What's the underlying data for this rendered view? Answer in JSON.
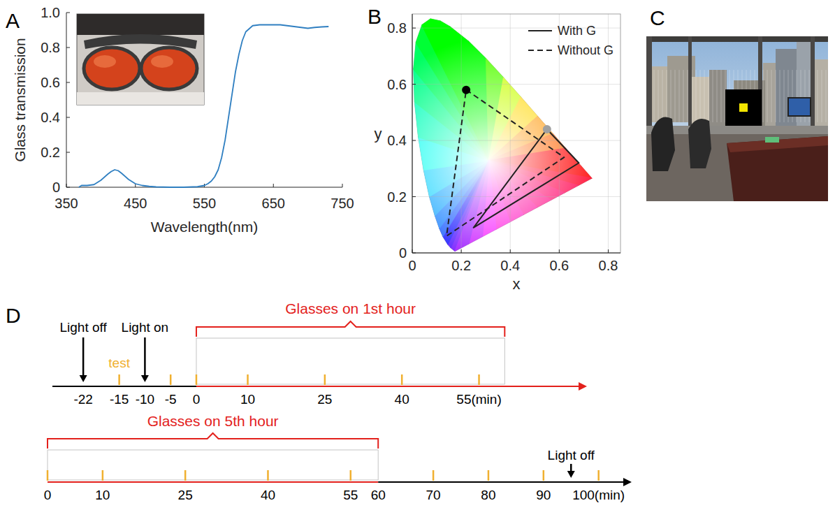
{
  "panel_labels": [
    "A",
    "B",
    "C",
    "D"
  ],
  "chart_data": [
    {
      "type": "line",
      "xlabel": "Wavelength(nm)",
      "ylabel": "Glass transmission",
      "x": [
        368,
        372,
        380,
        390,
        400,
        410,
        415,
        420,
        425,
        430,
        440,
        450,
        460,
        470,
        480,
        500,
        520,
        540,
        550,
        555,
        560,
        565,
        570,
        575,
        580,
        585,
        590,
        595,
        600,
        605,
        610,
        620,
        630,
        640,
        650,
        660,
        670,
        680,
        690,
        700,
        710,
        720,
        730
      ],
      "values": [
        0,
        0.01,
        0.01,
        0.015,
        0.04,
        0.075,
        0.09,
        0.1,
        0.095,
        0.08,
        0.045,
        0.02,
        0.01,
        0.005,
        0.002,
        0,
        0,
        0.003,
        0.01,
        0.02,
        0.035,
        0.06,
        0.1,
        0.17,
        0.27,
        0.4,
        0.53,
        0.66,
        0.76,
        0.84,
        0.89,
        0.925,
        0.93,
        0.93,
        0.93,
        0.93,
        0.925,
        0.92,
        0.915,
        0.91,
        0.915,
        0.918,
        0.92
      ],
      "color": "#2f7fc1",
      "xlim": [
        350,
        750
      ],
      "ylim": [
        0,
        1
      ],
      "xticks": [
        350,
        450,
        550,
        650,
        750
      ],
      "yticks": [
        0,
        0.2,
        0.4,
        0.6,
        0.8,
        {
          "value": 1,
          "label": "1.0"
        }
      ]
    },
    {
      "type": "line",
      "xlabel": "x",
      "ylabel": "y",
      "xlim": [
        0,
        0.85
      ],
      "ylim": [
        0,
        0.85
      ],
      "xticks": [
        0,
        0.2,
        0.4,
        0.6,
        0.8
      ],
      "yticks": [
        0,
        0.2,
        0.4,
        0.6,
        0.8
      ],
      "grid": true,
      "legend": "upper right",
      "spectral_locus": {
        "x": [
          0.1741,
          0.1566,
          0.144,
          0.1241,
          0.1096,
          0.0913,
          0.0687,
          0.0454,
          0.0235,
          0.0082,
          0.0039,
          0.0139,
          0.0389,
          0.0743,
          0.1142,
          0.1547,
          0.2296,
          0.3016,
          0.3731,
          0.4441,
          0.5125,
          0.5752,
          0.627,
          0.6915,
          0.7347
        ],
        "y": [
          0.005,
          0.0177,
          0.0297,
          0.0578,
          0.0868,
          0.1327,
          0.2007,
          0.295,
          0.4127,
          0.5384,
          0.6548,
          0.7502,
          0.812,
          0.8338,
          0.8262,
          0.8059,
          0.7543,
          0.6923,
          0.6245,
          0.5547,
          0.4866,
          0.4242,
          0.3725,
          0.3083,
          0.2653
        ]
      },
      "series": [
        {
          "name": "With G",
          "x": [
            0.55,
            0.68,
            0.25
          ],
          "values": [
            0.44,
            0.32,
            0.09
          ],
          "line_style": "solid",
          "marker": "circle",
          "color": "#a0a0a0"
        },
        {
          "name": "Without G",
          "x": [
            0.22,
            0.62,
            0.14
          ],
          "values": [
            0.58,
            0.34,
            0.06
          ],
          "line_style": "dashed",
          "marker": "circle",
          "color": "#000000"
        }
      ]
    }
  ],
  "timelines": [
    {
      "range": [
        -28,
        76
      ],
      "segments": [
        {
          "from": -28,
          "to": 0,
          "color": "#000000"
        },
        {
          "from": 0,
          "to": 76,
          "color": "#e3211c"
        }
      ],
      "ticks": [
        -22,
        -15,
        -10,
        -5,
        0,
        10,
        25,
        40,
        {
          "value": 55,
          "label": "55(min)"
        }
      ],
      "tests": [
        -15,
        -5,
        0,
        10,
        25,
        40,
        55
      ],
      "test_label": "test",
      "events": [
        {
          "label": "Light off",
          "time": -22
        },
        {
          "label": "Light on",
          "time": -10
        }
      ],
      "glasses": {
        "label": "Glasses on 1st hour",
        "start": 0,
        "end": 60
      }
    },
    {
      "range": [
        0,
        106
      ],
      "segments": [
        {
          "from": 0,
          "to": 60,
          "color": "#e3211c"
        },
        {
          "from": 60,
          "to": 106,
          "color": "#000000"
        }
      ],
      "ticks": [
        0,
        10,
        25,
        40,
        55,
        60,
        70,
        80,
        90,
        {
          "value": 100,
          "label": "100(min)"
        }
      ],
      "tests": [
        0,
        10,
        25,
        40,
        55,
        70,
        80,
        90,
        100
      ],
      "events": [
        {
          "label": "Light off",
          "time": 95
        }
      ],
      "glasses": {
        "label": "Glasses on 5th hour",
        "start": 0,
        "end": 60
      }
    }
  ]
}
